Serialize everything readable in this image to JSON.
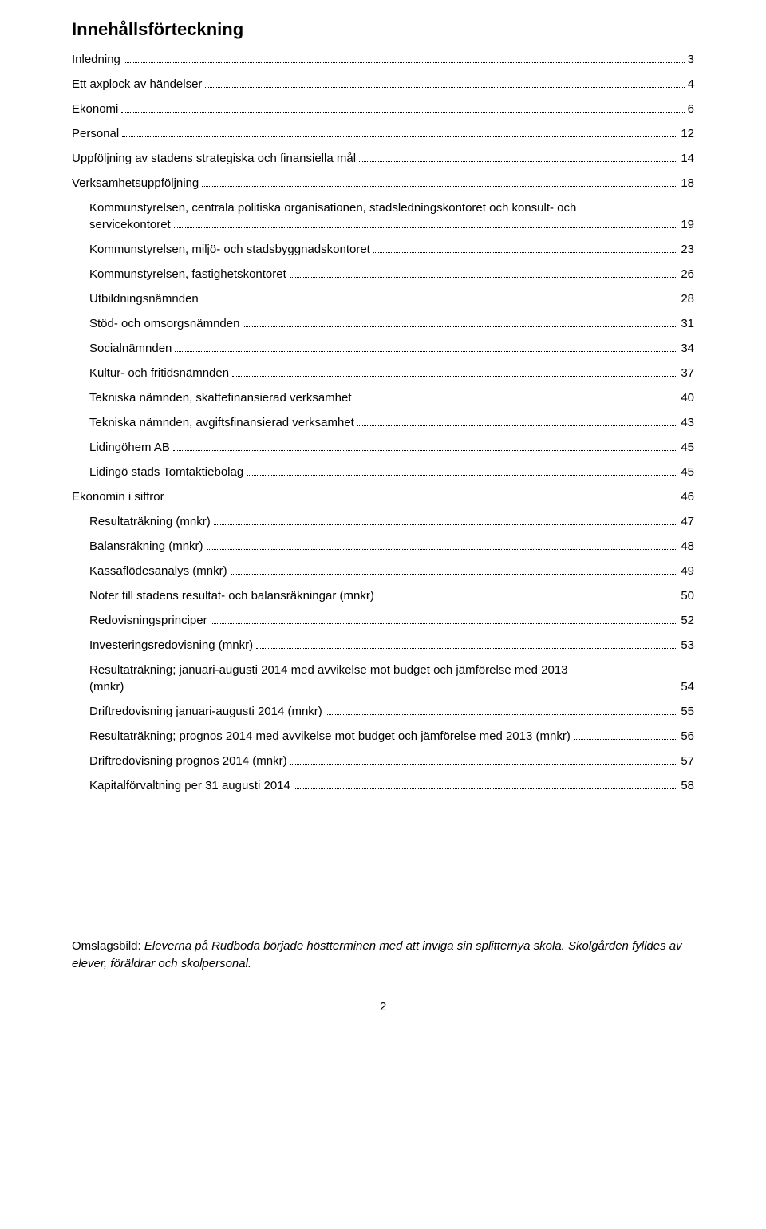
{
  "title": "Innehållsförteckning",
  "entries": [
    {
      "level": 1,
      "label": "Inledning",
      "page": "3"
    },
    {
      "level": 1,
      "label": "Ett axplock av händelser",
      "page": "4"
    },
    {
      "level": 1,
      "label": "Ekonomi",
      "page": "6"
    },
    {
      "level": 1,
      "label": "Personal",
      "page": "12"
    },
    {
      "level": 1,
      "label": "Uppföljning av stadens strategiska och finansiella mål",
      "page": "14"
    },
    {
      "level": 1,
      "label": "Verksamhetsuppföljning",
      "page": "18"
    },
    {
      "level": 2,
      "label": "Kommunstyrelsen, centrala politiska organisationen, stadsledningskontoret och konsult- och servicekontoret",
      "page": "19",
      "multiline": true,
      "line1": "Kommunstyrelsen, centrala politiska organisationen, stadsledningskontoret och konsult- och",
      "line2": "servicekontoret"
    },
    {
      "level": 2,
      "label": "Kommunstyrelsen, miljö- och stadsbyggnadskontoret",
      "page": "23"
    },
    {
      "level": 2,
      "label": "Kommunstyrelsen, fastighetskontoret",
      "page": "26"
    },
    {
      "level": 2,
      "label": "Utbildningsnämnden",
      "page": "28"
    },
    {
      "level": 2,
      "label": "Stöd- och omsorgsnämnden",
      "page": "31"
    },
    {
      "level": 2,
      "label": "Socialnämnden",
      "page": "34"
    },
    {
      "level": 2,
      "label": "Kultur- och fritidsnämnden",
      "page": "37"
    },
    {
      "level": 2,
      "label": "Tekniska nämnden, skattefinansierad verksamhet",
      "page": "40"
    },
    {
      "level": 2,
      "label": "Tekniska nämnden, avgiftsfinansierad verksamhet",
      "page": "43"
    },
    {
      "level": 2,
      "label": "Lidingöhem AB",
      "page": "45"
    },
    {
      "level": 2,
      "label": "Lidingö stads Tomtaktiebolag",
      "page": "45"
    },
    {
      "level": 1,
      "label": "Ekonomin i siffror",
      "page": "46"
    },
    {
      "level": 2,
      "label": "Resultaträkning (mnkr)",
      "page": "47"
    },
    {
      "level": 2,
      "label": "Balansräkning (mnkr)",
      "page": "48"
    },
    {
      "level": 2,
      "label": "Kassaflödesanalys (mnkr)",
      "page": "49"
    },
    {
      "level": 2,
      "label": "Noter till stadens resultat- och balansräkningar (mnkr)",
      "page": "50"
    },
    {
      "level": 2,
      "label": "Redovisningsprinciper",
      "page": "52"
    },
    {
      "level": 2,
      "label": "Investeringsredovisning (mnkr)",
      "page": "53"
    },
    {
      "level": 2,
      "label": "Resultaträkning; januari-augusti 2014 med avvikelse mot budget och jämförelse med 2013 (mnkr)",
      "page": "54",
      "multiline": true,
      "line1": "Resultaträkning; januari-augusti 2014 med avvikelse mot budget och jämförelse med 2013",
      "line2": "(mnkr)"
    },
    {
      "level": 2,
      "label": "Driftredovisning januari-augusti 2014 (mnkr)",
      "page": "55"
    },
    {
      "level": 2,
      "label": "Resultaträkning; prognos 2014 med avvikelse mot budget och jämförelse med 2013 (mnkr)",
      "page": "56"
    },
    {
      "level": 2,
      "label": "Driftredovisning prognos 2014 (mnkr)",
      "page": "57"
    },
    {
      "level": 2,
      "label": "Kapitalförvaltning per 31 augusti 2014",
      "page": "58"
    }
  ],
  "caption_prefix": "Omslagsbild: ",
  "caption_italic": "Eleverna på Rudboda började höstterminen med att inviga sin splitternya skola. Skolgården fylldes av elever, föräldrar och skolpersonal.",
  "page_number": "2"
}
